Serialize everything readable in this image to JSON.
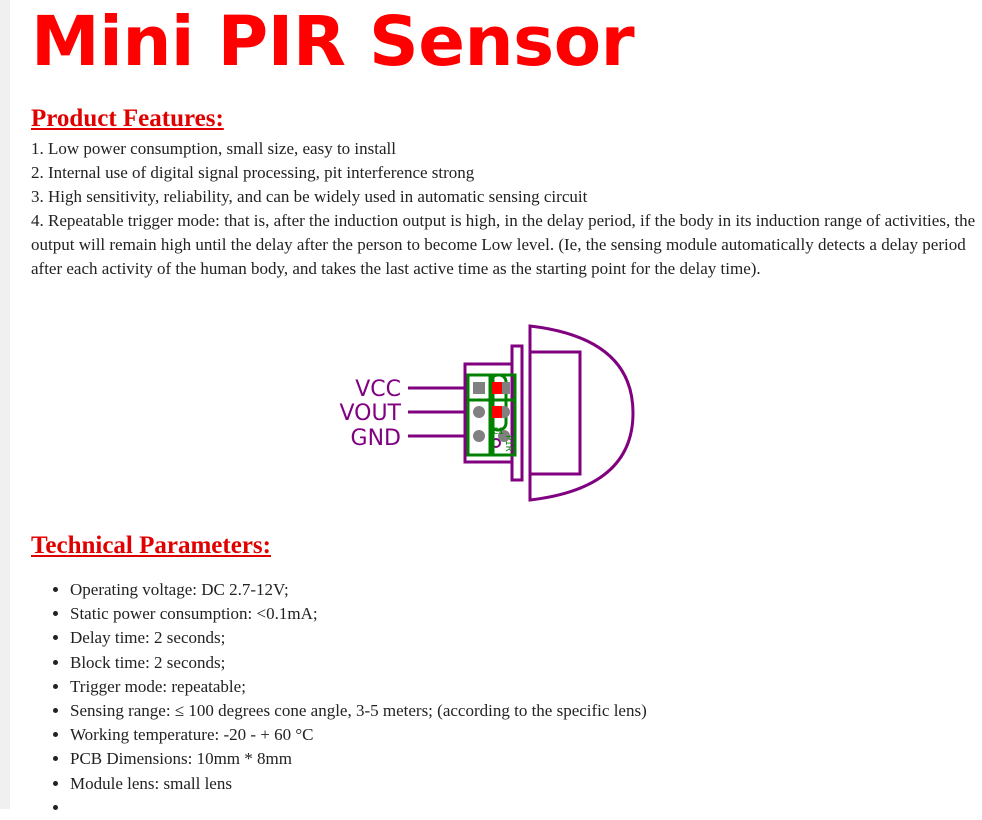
{
  "title": "Mini PIR Sensor",
  "features": {
    "heading": "Product Features:",
    "items": [
      "1. Low power consumption, small size, easy to install",
      "2. Internal use of digital signal processing, pit interference strong",
      "3. High sensitivity, reliability, and can be widely used in automatic sensing circuit",
      "4. Repeatable trigger mode: that is, after the induction output is high, in the delay period, if the body in its induction range of activities, the output will remain high until the delay after the person to become Low level.  (Ie, the sensing module automatically detects a delay period after each activity of the human body, and takes the last active time as the starting point for the delay time)."
    ]
  },
  "diagram": {
    "pins": [
      "VCC",
      "VOUT",
      "GND"
    ],
    "labels": {
      "c1": "C1",
      "pir": "PIR"
    },
    "colors": {
      "outline": "#800080",
      "pcb": "#008000",
      "pad": "#808080",
      "cap": "#ff0000"
    }
  },
  "parameters": {
    "heading": "Technical Parameters:",
    "items": [
      "Operating voltage: DC 2.7-12V;",
      "Static power consumption: <0.1mA;",
      "Delay time: 2 seconds;",
      "Block time: 2 seconds;",
      "Trigger mode: repeatable;",
      "Sensing range: ≤ 100 degrees cone angle, 3-5 meters; (according to the specific lens)",
      "Working temperature: -20 - + 60 °C",
      "PCB Dimensions: 10mm * 8mm",
      "Module lens: small lens",
      ""
    ]
  }
}
